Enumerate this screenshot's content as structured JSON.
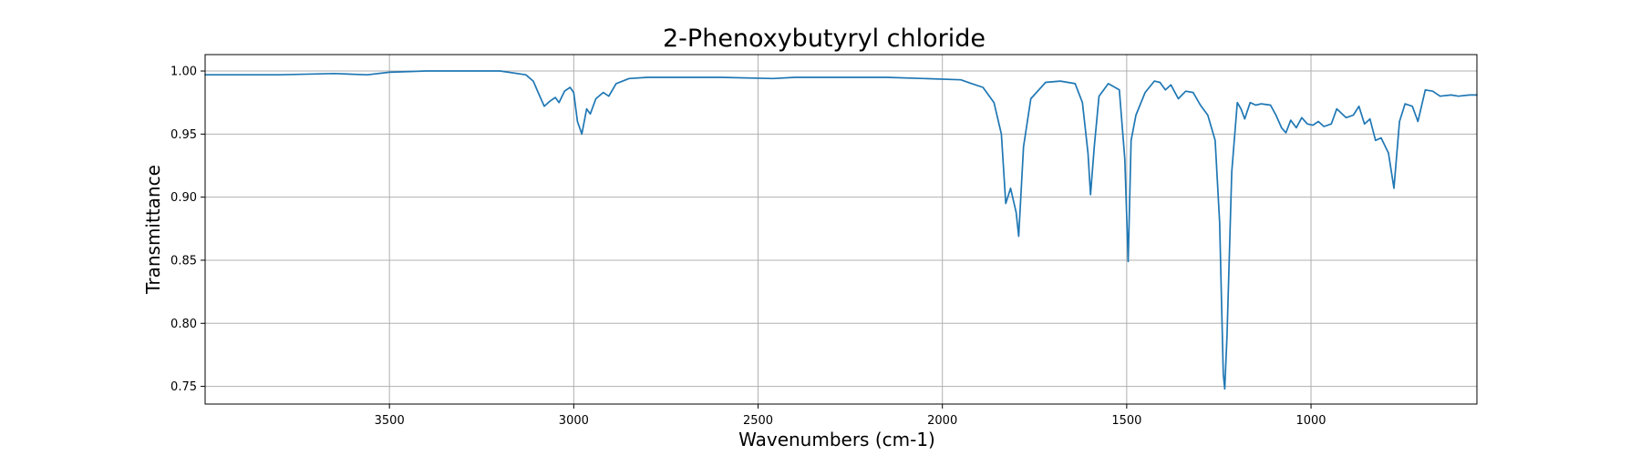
{
  "chart_data": {
    "type": "line",
    "title": "2-Phenoxybutyryl chloride",
    "xlabel": "Wavenumbers (cm-1)",
    "ylabel": "Transmittance",
    "xlim": [
      4000,
      550
    ],
    "ylim": [
      0.736,
      1.013
    ],
    "x_reversed": true,
    "grid": true,
    "x_ticks": [
      3500,
      3000,
      2500,
      2000,
      1500,
      1000
    ],
    "x_tick_labels": [
      "3500",
      "3000",
      "2500",
      "2000",
      "1500",
      "1000"
    ],
    "y_ticks": [
      0.75,
      0.8,
      0.85,
      0.9,
      0.95,
      1.0
    ],
    "y_tick_labels": [
      "0.75",
      "0.80",
      "0.85",
      "0.90",
      "0.95",
      "1.00"
    ],
    "series": [
      {
        "color": "#1f77b4",
        "points": [
          [
            4000,
            0.997
          ],
          [
            3800,
            0.997
          ],
          [
            3650,
            0.998
          ],
          [
            3560,
            0.997
          ],
          [
            3500,
            0.999
          ],
          [
            3400,
            1.0
          ],
          [
            3300,
            1.0
          ],
          [
            3200,
            1.0
          ],
          [
            3130,
            0.997
          ],
          [
            3110,
            0.992
          ],
          [
            3095,
            0.982
          ],
          [
            3080,
            0.972
          ],
          [
            3065,
            0.976
          ],
          [
            3050,
            0.979
          ],
          [
            3040,
            0.975
          ],
          [
            3025,
            0.984
          ],
          [
            3010,
            0.987
          ],
          [
            3000,
            0.983
          ],
          [
            2990,
            0.96
          ],
          [
            2978,
            0.95
          ],
          [
            2965,
            0.97
          ],
          [
            2955,
            0.966
          ],
          [
            2940,
            0.978
          ],
          [
            2920,
            0.983
          ],
          [
            2905,
            0.98
          ],
          [
            2885,
            0.99
          ],
          [
            2850,
            0.994
          ],
          [
            2800,
            0.995
          ],
          [
            2600,
            0.995
          ],
          [
            2460,
            0.994
          ],
          [
            2400,
            0.995
          ],
          [
            2200,
            0.995
          ],
          [
            2150,
            0.995
          ],
          [
            2050,
            0.994
          ],
          [
            1950,
            0.993
          ],
          [
            1920,
            0.99
          ],
          [
            1890,
            0.987
          ],
          [
            1860,
            0.975
          ],
          [
            1840,
            0.95
          ],
          [
            1828,
            0.895
          ],
          [
            1815,
            0.907
          ],
          [
            1800,
            0.888
          ],
          [
            1793,
            0.869
          ],
          [
            1780,
            0.94
          ],
          [
            1760,
            0.978
          ],
          [
            1720,
            0.991
          ],
          [
            1680,
            0.992
          ],
          [
            1640,
            0.99
          ],
          [
            1620,
            0.975
          ],
          [
            1605,
            0.935
          ],
          [
            1598,
            0.902
          ],
          [
            1588,
            0.94
          ],
          [
            1575,
            0.98
          ],
          [
            1550,
            0.99
          ],
          [
            1520,
            0.985
          ],
          [
            1505,
            0.93
          ],
          [
            1496,
            0.849
          ],
          [
            1488,
            0.945
          ],
          [
            1475,
            0.965
          ],
          [
            1450,
            0.983
          ],
          [
            1425,
            0.992
          ],
          [
            1410,
            0.991
          ],
          [
            1395,
            0.985
          ],
          [
            1380,
            0.989
          ],
          [
            1360,
            0.978
          ],
          [
            1340,
            0.984
          ],
          [
            1320,
            0.983
          ],
          [
            1300,
            0.973
          ],
          [
            1280,
            0.965
          ],
          [
            1260,
            0.945
          ],
          [
            1248,
            0.88
          ],
          [
            1238,
            0.76
          ],
          [
            1234,
            0.748
          ],
          [
            1228,
            0.79
          ],
          [
            1215,
            0.92
          ],
          [
            1200,
            0.975
          ],
          [
            1190,
            0.97
          ],
          [
            1180,
            0.962
          ],
          [
            1165,
            0.975
          ],
          [
            1150,
            0.973
          ],
          [
            1135,
            0.974
          ],
          [
            1110,
            0.973
          ],
          [
            1095,
            0.965
          ],
          [
            1080,
            0.955
          ],
          [
            1068,
            0.951
          ],
          [
            1055,
            0.961
          ],
          [
            1040,
            0.955
          ],
          [
            1025,
            0.963
          ],
          [
            1010,
            0.958
          ],
          [
            995,
            0.957
          ],
          [
            980,
            0.96
          ],
          [
            965,
            0.956
          ],
          [
            945,
            0.958
          ],
          [
            930,
            0.97
          ],
          [
            905,
            0.963
          ],
          [
            885,
            0.965
          ],
          [
            870,
            0.972
          ],
          [
            855,
            0.958
          ],
          [
            840,
            0.962
          ],
          [
            825,
            0.945
          ],
          [
            810,
            0.947
          ],
          [
            790,
            0.935
          ],
          [
            775,
            0.907
          ],
          [
            760,
            0.96
          ],
          [
            745,
            0.974
          ],
          [
            725,
            0.972
          ],
          [
            710,
            0.96
          ],
          [
            690,
            0.985
          ],
          [
            670,
            0.984
          ],
          [
            650,
            0.98
          ],
          [
            620,
            0.981
          ],
          [
            600,
            0.98
          ],
          [
            570,
            0.981
          ],
          [
            550,
            0.981
          ]
        ]
      }
    ]
  }
}
